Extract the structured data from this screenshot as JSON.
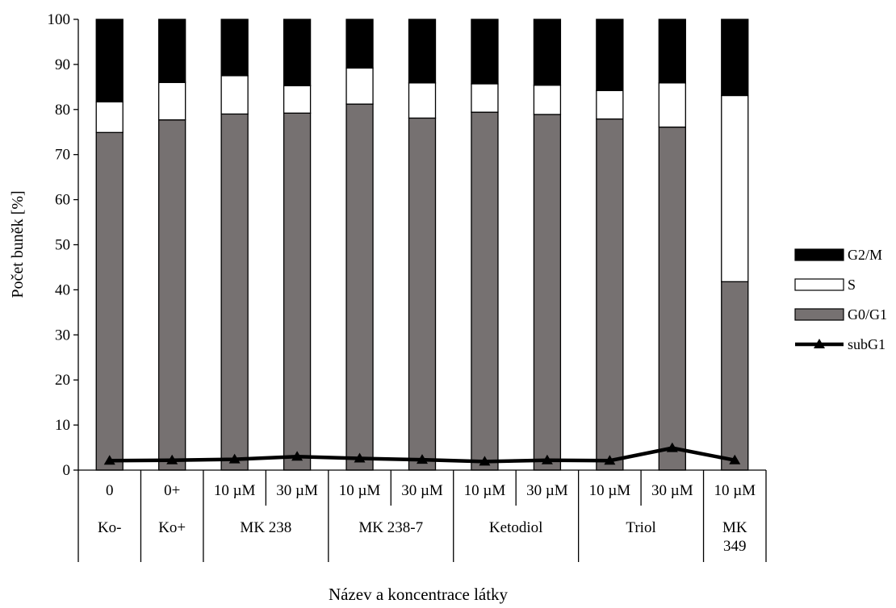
{
  "chart_data": {
    "type": "bar",
    "stacked": true,
    "ylabel": "Počet buněk [%]",
    "xlabel": "Název a koncentrace látky",
    "ylim": [
      0,
      100
    ],
    "yticks": [
      0,
      10,
      20,
      30,
      40,
      50,
      60,
      70,
      80,
      90,
      100
    ],
    "grid": false,
    "legend_position": "right",
    "categories": [
      "0",
      "0+",
      "10 µM",
      "30 µM",
      "10 µM",
      "30 µM",
      "10 µM",
      "30 µM",
      "10 µM",
      "30 µM",
      "10 µM"
    ],
    "groups": [
      {
        "label": "Ko-",
        "span": 1
      },
      {
        "label": "Ko+",
        "span": 1
      },
      {
        "label": "MK 238",
        "span": 2
      },
      {
        "label": "MK 238-7",
        "span": 2
      },
      {
        "label": "Ketodiol",
        "span": 2
      },
      {
        "label": "Triol",
        "span": 2
      },
      {
        "label": "MK 349",
        "span": 1
      }
    ],
    "series": [
      {
        "name": "G0/G1",
        "kind": "bar",
        "color": "#767171",
        "values": [
          74.9,
          77.7,
          79.0,
          79.2,
          81.2,
          78.1,
          79.4,
          78.9,
          77.9,
          76.1,
          41.8
        ]
      },
      {
        "name": "S",
        "kind": "bar",
        "color": "#ffffff",
        "values": [
          6.8,
          8.3,
          8.5,
          6.1,
          8.0,
          7.8,
          6.3,
          6.5,
          6.3,
          9.8,
          41.3
        ]
      },
      {
        "name": "G2/M",
        "kind": "bar",
        "color": "#000000",
        "values": [
          18.3,
          14.0,
          12.5,
          14.7,
          10.8,
          14.1,
          14.3,
          14.6,
          15.8,
          14.1,
          16.9
        ]
      },
      {
        "name": "subG1",
        "kind": "line",
        "color": "#000000",
        "values": [
          2.1,
          2.2,
          2.4,
          3.0,
          2.6,
          2.3,
          1.9,
          2.2,
          2.1,
          4.9,
          2.2
        ]
      }
    ],
    "legend_order": [
      "G2/M",
      "S",
      "G0/G1",
      "subG1"
    ]
  }
}
